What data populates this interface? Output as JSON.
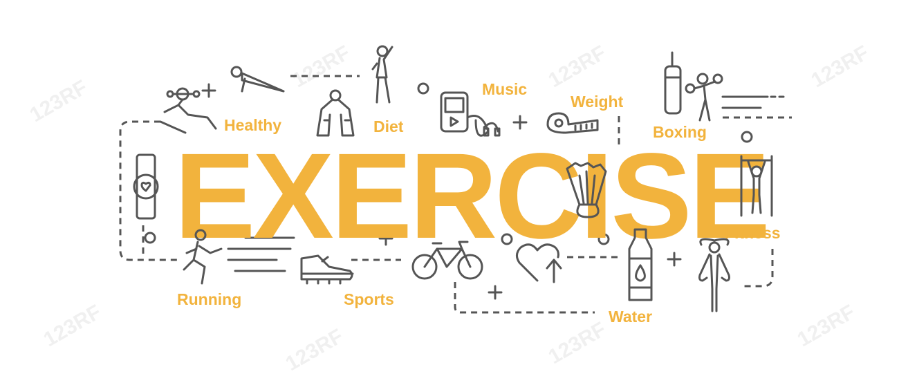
{
  "title": "EXERCISE",
  "labels": {
    "healthy": "Healthy",
    "diet": "Diet",
    "music": "Music",
    "weight": "Weight",
    "boxing": "Boxing",
    "fitness": "Fitness",
    "running": "Running",
    "sports": "Sports",
    "water": "Water"
  },
  "watermark": "123RF",
  "colors": {
    "accent": "#f2b33d",
    "line": "#555555"
  },
  "icons": [
    "bench-press-icon",
    "push-up-icon",
    "hand-grip-icon",
    "stretching-person-icon",
    "music-player-icon",
    "measuring-tape-icon",
    "punching-bag-icon",
    "boxer-icon",
    "smart-watch-icon",
    "shuttlecock-icon",
    "pull-up-bar-icon",
    "running-person-icon",
    "sneaker-icon",
    "bicycle-icon",
    "heart-rate-icon",
    "water-bottle-icon",
    "jump-rope-icon"
  ]
}
